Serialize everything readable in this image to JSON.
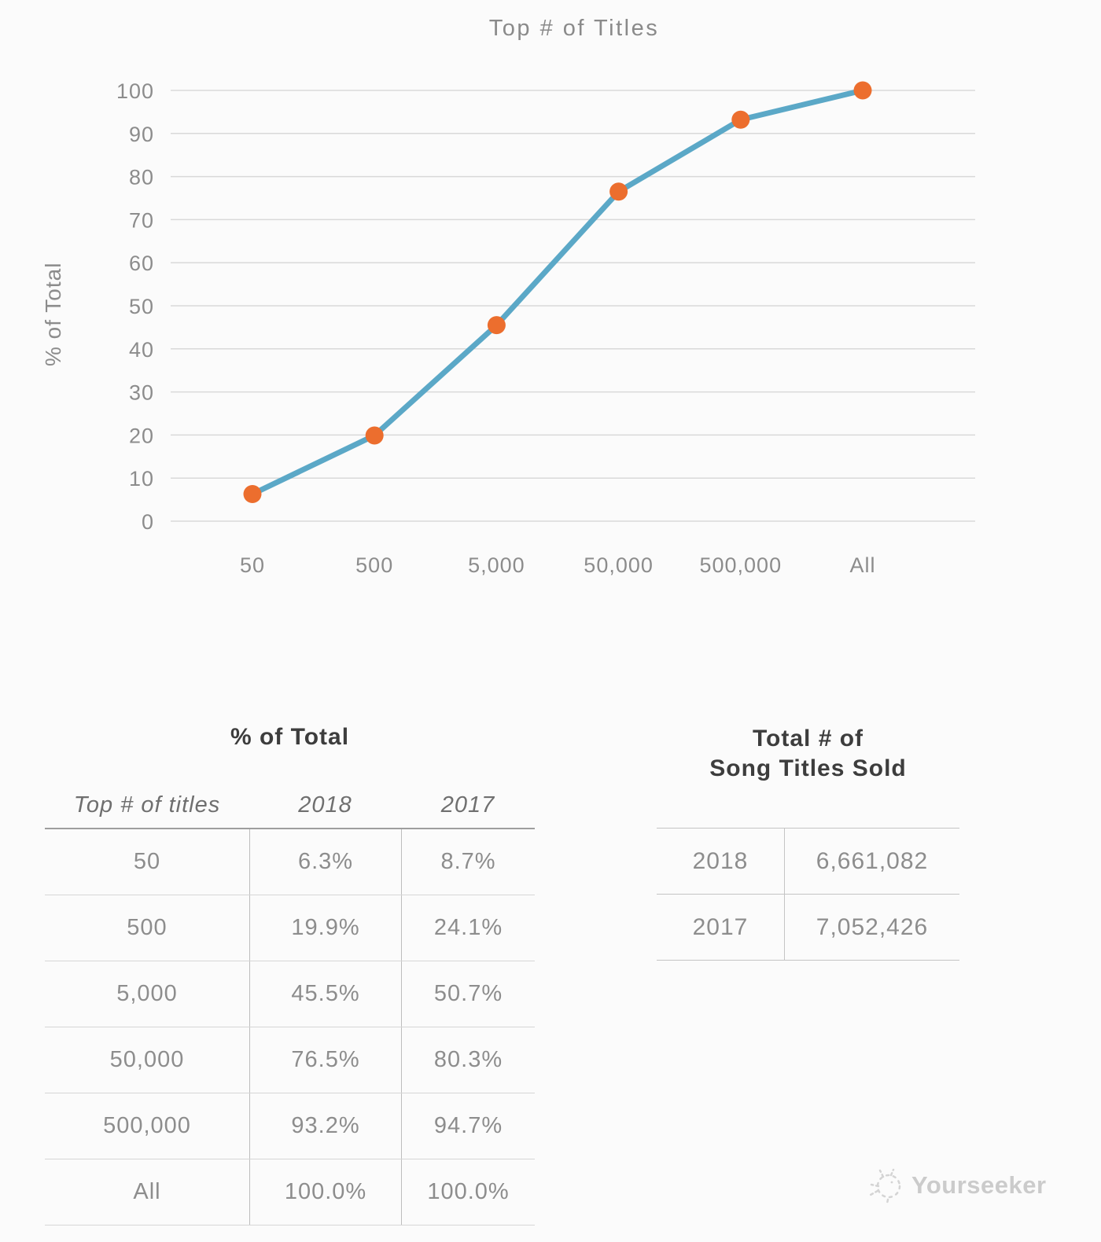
{
  "page": {
    "background": "#fbfbfb"
  },
  "chart_data": {
    "type": "line",
    "title": "Top # of Titles",
    "xlabel": "",
    "ylabel": "% of Total",
    "categories": [
      "50",
      "500",
      "5,000",
      "50,000",
      "500,000",
      "All"
    ],
    "series": [
      {
        "name": "2018",
        "values": [
          6.3,
          19.9,
          45.5,
          76.5,
          93.2,
          100.0
        ]
      }
    ],
    "ylim": [
      0,
      100
    ],
    "yticks": [
      0,
      10,
      20,
      30,
      40,
      50,
      60,
      70,
      80,
      90,
      100
    ],
    "grid": true,
    "legend": false,
    "line_color": "#5ba8c7",
    "marker_color": "#ec6e2e",
    "gridline_color": "#d9d9d9",
    "axis_text_color": "#8c8c8c"
  },
  "left_table": {
    "title": "% of Total",
    "columns": {
      "c1": "Top # of titles",
      "c2": "2018",
      "c3": "2017"
    },
    "rows": [
      {
        "label": "50",
        "y2018": "6.3%",
        "y2017": "8.7%"
      },
      {
        "label": "500",
        "y2018": "19.9%",
        "y2017": "24.1%"
      },
      {
        "label": "5,000",
        "y2018": "45.5%",
        "y2017": "50.7%"
      },
      {
        "label": "50,000",
        "y2018": "76.5%",
        "y2017": "80.3%"
      },
      {
        "label": "500,000",
        "y2018": "93.2%",
        "y2017": "94.7%"
      },
      {
        "label": "All",
        "y2018": "100.0%",
        "y2017": "100.0%"
      }
    ]
  },
  "right_table": {
    "title_line1": "Total # of",
    "title_line2": "Song Titles Sold",
    "rows": [
      {
        "year": "2018",
        "value": "6,661,082"
      },
      {
        "year": "2017",
        "value": "7,052,426"
      }
    ]
  },
  "watermark": {
    "label": "Yourseeker"
  }
}
